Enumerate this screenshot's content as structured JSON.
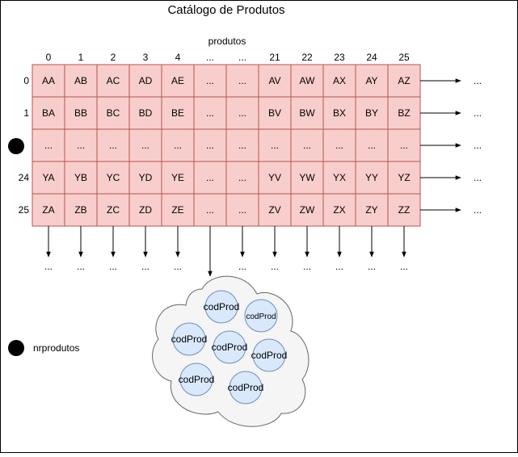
{
  "title": "Catálogo de Produtos",
  "array_label": "produtos",
  "col_indices": [
    "0",
    "1",
    "2",
    "3",
    "4",
    "...",
    "...",
    "21",
    "22",
    "23",
    "24",
    "25"
  ],
  "row_indices": [
    "0",
    "1",
    "",
    "24",
    "25"
  ],
  "row_marker": "row-dot",
  "grid": [
    [
      "AA",
      "AB",
      "AC",
      "AD",
      "AE",
      "...",
      "...",
      "AV",
      "AW",
      "AX",
      "AY",
      "AZ"
    ],
    [
      "BA",
      "BB",
      "BC",
      "BD",
      "BE",
      "...",
      "...",
      "BV",
      "BW",
      "BX",
      "BY",
      "BZ"
    ],
    [
      "...",
      "...",
      "...",
      "...",
      "...",
      "...",
      "...",
      "...",
      "...",
      "...",
      "...",
      "..."
    ],
    [
      "YA",
      "YB",
      "YC",
      "YD",
      "YE",
      "...",
      "...",
      "YV",
      "YW",
      "YX",
      "YY",
      "YZ"
    ],
    [
      "ZA",
      "ZB",
      "ZC",
      "ZD",
      "ZE",
      "...",
      "...",
      "ZV",
      "ZW",
      "ZX",
      "ZY",
      "ZZ"
    ]
  ],
  "row_overflow": [
    "...",
    "...",
    "...",
    "...",
    "..."
  ],
  "col_overflow": [
    "...",
    "...",
    "...",
    "...",
    "...",
    "",
    "...",
    "...",
    "...",
    "...",
    "...",
    "..."
  ],
  "tree_node_label": "codProd",
  "tree_nodes": [
    "codProd",
    "codProd",
    "codProd",
    "codProd",
    "codProd",
    "codProd",
    "codProd"
  ],
  "counter_label": "nrprodutos",
  "colors": {
    "cell_fill": "#f8cecc",
    "cell_stroke": "#b85450",
    "node_fill": "#dae8fc",
    "node_stroke": "#6c8ebf",
    "cloud_fill": "#f5f5f5",
    "cloud_stroke": "#666666",
    "line": "#000000"
  }
}
